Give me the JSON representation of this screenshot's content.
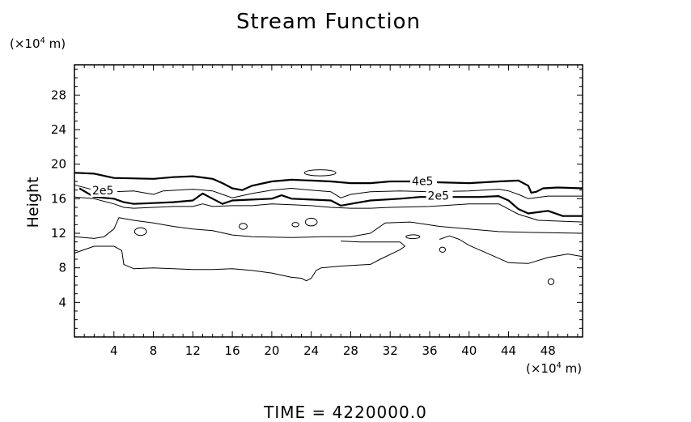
{
  "chart_data": {
    "type": "contour",
    "title": "Stream Function",
    "ylabel": "Height",
    "xunit": {
      "prefix": "(×10",
      "exp": "4",
      "suffix": " m)"
    },
    "yunit": {
      "prefix": "(×10",
      "exp": "4",
      "suffix": " m)"
    },
    "footer": "TIME  =  4220000.0",
    "xlim": [
      0,
      51.5
    ],
    "ylim": [
      0,
      31.5
    ],
    "xticks": [
      4,
      8,
      12,
      16,
      20,
      24,
      28,
      32,
      36,
      40,
      44,
      48
    ],
    "yticks": [
      4,
      8,
      12,
      16,
      20,
      24,
      28
    ],
    "contour_labels": [
      {
        "text": "4e5",
        "x": 34.2,
        "y": 17.6
      },
      {
        "text": "2e5",
        "x": 35.8,
        "y": 15.9
      },
      {
        "text": "2e5",
        "x": 1.8,
        "y": 16.5
      }
    ],
    "contours": [
      {
        "name": "c-top-bold",
        "bold": true,
        "closed": false,
        "points": [
          [
            0,
            19
          ],
          [
            2,
            18.9
          ],
          [
            4,
            18.4
          ],
          [
            8,
            18.3
          ],
          [
            10,
            18.5
          ],
          [
            12,
            18.6
          ],
          [
            14,
            18.3
          ],
          [
            15,
            17.8
          ],
          [
            16,
            17.2
          ],
          [
            17,
            17.0
          ],
          [
            18,
            17.5
          ],
          [
            20,
            18.0
          ],
          [
            22,
            18.2
          ],
          [
            24,
            18.1
          ],
          [
            26,
            18.0
          ],
          [
            28,
            17.8
          ],
          [
            30,
            17.8
          ],
          [
            32,
            18.0
          ],
          [
            34,
            18.0
          ],
          [
            37,
            17.9
          ],
          [
            40,
            17.8
          ],
          [
            43,
            18.0
          ],
          [
            45,
            18.1
          ],
          [
            46,
            17.5
          ],
          [
            46.3,
            16.7
          ],
          [
            46.8,
            16.8
          ],
          [
            47.5,
            17.2
          ],
          [
            49,
            17.3
          ],
          [
            51.5,
            17.2
          ]
        ]
      },
      {
        "name": "c-mid-thin-1",
        "bold": false,
        "closed": false,
        "points": [
          [
            0,
            17.6
          ],
          [
            2,
            17.0
          ],
          [
            4,
            16.8
          ],
          [
            6,
            16.9
          ],
          [
            8,
            16.5
          ],
          [
            9,
            16.9
          ],
          [
            12,
            17.1
          ],
          [
            14,
            16.9
          ],
          [
            15,
            16.5
          ],
          [
            16,
            16.1
          ],
          [
            18,
            16.6
          ],
          [
            20,
            17.0
          ],
          [
            22,
            17.2
          ],
          [
            24,
            17.0
          ],
          [
            26,
            16.8
          ],
          [
            27,
            16.1
          ],
          [
            28,
            16.5
          ],
          [
            30,
            16.8
          ],
          [
            33,
            16.9
          ],
          [
            36,
            16.8
          ],
          [
            40,
            16.9
          ],
          [
            43,
            17.1
          ],
          [
            44,
            16.9
          ],
          [
            45,
            16.5
          ],
          [
            46,
            16.0
          ],
          [
            48,
            16.3
          ],
          [
            51.5,
            16.3
          ]
        ]
      },
      {
        "name": "c-bold-lower",
        "bold": true,
        "closed": false,
        "points": [
          [
            0.5,
            17.2
          ],
          [
            2,
            16.2
          ],
          [
            4,
            16.0
          ],
          [
            5,
            15.6
          ],
          [
            6,
            15.4
          ],
          [
            8,
            15.5
          ],
          [
            10,
            15.6
          ],
          [
            12,
            15.8
          ],
          [
            13,
            16.6
          ],
          [
            14,
            16.0
          ],
          [
            15,
            15.4
          ],
          [
            16,
            15.8
          ],
          [
            18,
            15.9
          ],
          [
            20,
            16.0
          ],
          [
            21,
            16.4
          ],
          [
            22,
            16.0
          ],
          [
            24,
            15.9
          ],
          [
            26,
            15.8
          ],
          [
            27,
            15.2
          ],
          [
            28,
            15.4
          ],
          [
            30,
            15.8
          ],
          [
            33,
            16.0
          ],
          [
            35,
            16.2
          ],
          [
            38,
            16.2
          ],
          [
            41,
            16.2
          ],
          [
            43,
            16.3
          ],
          [
            44,
            15.8
          ],
          [
            45,
            14.8
          ],
          [
            46,
            14.3
          ],
          [
            48,
            14.6
          ],
          [
            49.5,
            14.0
          ],
          [
            51.5,
            14.0
          ]
        ]
      },
      {
        "name": "c-mid-thin-2",
        "bold": false,
        "closed": false,
        "points": [
          [
            0,
            16.2
          ],
          [
            2,
            16.0
          ],
          [
            4,
            15.4
          ],
          [
            5,
            15.0
          ],
          [
            6,
            14.9
          ],
          [
            8,
            15.0
          ],
          [
            10,
            15.1
          ],
          [
            12,
            15.1
          ],
          [
            13,
            15.4
          ],
          [
            14,
            15.1
          ],
          [
            16,
            15.2
          ],
          [
            18,
            15.2
          ],
          [
            20,
            15.4
          ],
          [
            22,
            15.3
          ],
          [
            24,
            15.2
          ],
          [
            26,
            15.0
          ],
          [
            28,
            14.9
          ],
          [
            30,
            14.9
          ],
          [
            32,
            15.0
          ],
          [
            36,
            15.1
          ],
          [
            40,
            15.4
          ],
          [
            43,
            15.4
          ],
          [
            44,
            14.8
          ],
          [
            45,
            14.2
          ],
          [
            47,
            13.5
          ],
          [
            51.5,
            13.3
          ]
        ]
      },
      {
        "name": "c-middle-thin",
        "bold": false,
        "closed": false,
        "points": [
          [
            0,
            11.6
          ],
          [
            2,
            11.4
          ],
          [
            3,
            11.6
          ],
          [
            4,
            12.5
          ],
          [
            4.5,
            13.8
          ],
          [
            6,
            13.5
          ],
          [
            8,
            13.2
          ],
          [
            10,
            12.8
          ],
          [
            12,
            12.5
          ],
          [
            14,
            12.3
          ],
          [
            16,
            11.8
          ],
          [
            18,
            11.6
          ],
          [
            22,
            11.5
          ],
          [
            25,
            11.6
          ],
          [
            28,
            11.6
          ],
          [
            30,
            12.0
          ],
          [
            31.5,
            13.2
          ],
          [
            34,
            13.3
          ],
          [
            37,
            12.8
          ],
          [
            40,
            12.5
          ],
          [
            43,
            12.2
          ],
          [
            46,
            12.1
          ],
          [
            51.5,
            12.0
          ]
        ]
      },
      {
        "name": "c-lower-thin",
        "bold": false,
        "closed": false,
        "points": [
          [
            0,
            9.7
          ],
          [
            2,
            10.5
          ],
          [
            4,
            10.5
          ],
          [
            4.8,
            10.0
          ],
          [
            5,
            8.4
          ],
          [
            6,
            7.9
          ],
          [
            8,
            8.0
          ],
          [
            10,
            7.9
          ],
          [
            12,
            7.8
          ],
          [
            14,
            7.8
          ],
          [
            16,
            7.9
          ],
          [
            18,
            7.7
          ],
          [
            20,
            7.4
          ],
          [
            22,
            6.9
          ],
          [
            23,
            6.8
          ],
          [
            23.5,
            6.5
          ],
          [
            24,
            6.8
          ],
          [
            24.5,
            7.7
          ],
          [
            25,
            8.0
          ],
          [
            27,
            8.2
          ],
          [
            30,
            8.4
          ],
          [
            31,
            9.0
          ],
          [
            33,
            10.1
          ],
          [
            33.5,
            10.5
          ],
          [
            33,
            11.0
          ],
          [
            31,
            11.0
          ],
          [
            29,
            11.0
          ],
          [
            27,
            11.1
          ]
        ]
      },
      {
        "name": "c-lower-thin-right",
        "bold": false,
        "closed": false,
        "points": [
          [
            37,
            11.3
          ],
          [
            38,
            11.7
          ],
          [
            39,
            11.3
          ],
          [
            40,
            10.6
          ],
          [
            42,
            9.6
          ],
          [
            44,
            8.6
          ],
          [
            46,
            8.5
          ],
          [
            48,
            9.2
          ],
          [
            50,
            9.6
          ],
          [
            51.5,
            9.3
          ]
        ]
      }
    ],
    "islands": [
      {
        "name": "blob-top",
        "cx": 24.9,
        "cy": 19.0,
        "rx": 1.6,
        "ry": 0.35
      },
      {
        "name": "blob-left",
        "cx": 6.7,
        "cy": 12.2,
        "rx": 0.6,
        "ry": 0.45
      },
      {
        "name": "blob-a",
        "cx": 17.1,
        "cy": 12.8,
        "rx": 0.4,
        "ry": 0.35
      },
      {
        "name": "blob-b",
        "cx": 22.4,
        "cy": 13.0,
        "rx": 0.35,
        "ry": 0.25
      },
      {
        "name": "blob-c",
        "cx": 24.0,
        "cy": 13.3,
        "rx": 0.6,
        "ry": 0.45
      },
      {
        "name": "blob-d",
        "cx": 34.3,
        "cy": 11.6,
        "rx": 0.7,
        "ry": 0.22
      },
      {
        "name": "blob-e",
        "cx": 37.3,
        "cy": 10.1,
        "rx": 0.3,
        "ry": 0.3
      },
      {
        "name": "blob-f",
        "cx": 48.3,
        "cy": 6.4,
        "rx": 0.3,
        "ry": 0.35
      }
    ]
  }
}
